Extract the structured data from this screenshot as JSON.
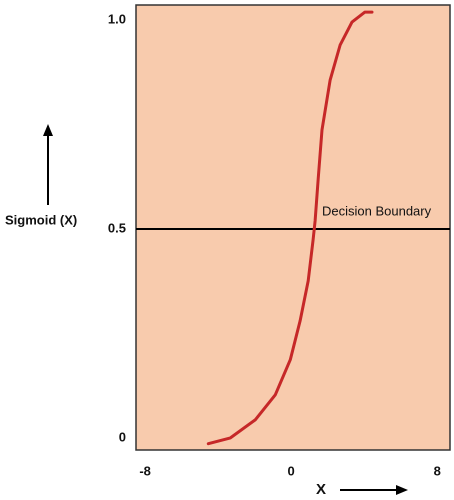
{
  "chart_data": {
    "type": "line",
    "ylabel": "Sigmoid (X)",
    "xlabel": "X",
    "annotation": "Decision Boundary",
    "hline": 0.5,
    "x": [
      -4.54,
      -3.33,
      -1.97,
      -0.87,
      -0.05,
      0.49,
      0.93,
      1.2,
      1.31,
      1.48,
      1.69,
      2.13,
      2.68,
      3.33,
      4.04,
      4.43
    ],
    "values": [
      -0.014,
      0,
      0.043,
      0.103,
      0.187,
      0.28,
      0.376,
      0.474,
      0.519,
      0.62,
      0.737,
      0.856,
      0.94,
      0.995,
      1.019,
      1.019
    ],
    "color": "#c62828",
    "background": "#f8cbad",
    "xlim": [
      -8.5,
      8.7
    ],
    "xticks": [
      -8,
      0,
      8
    ],
    "ylim": [
      -0.029,
      1.036
    ],
    "yticks": [
      0,
      0.5,
      {
        "value": 1,
        "label": "1.0"
      }
    ]
  }
}
